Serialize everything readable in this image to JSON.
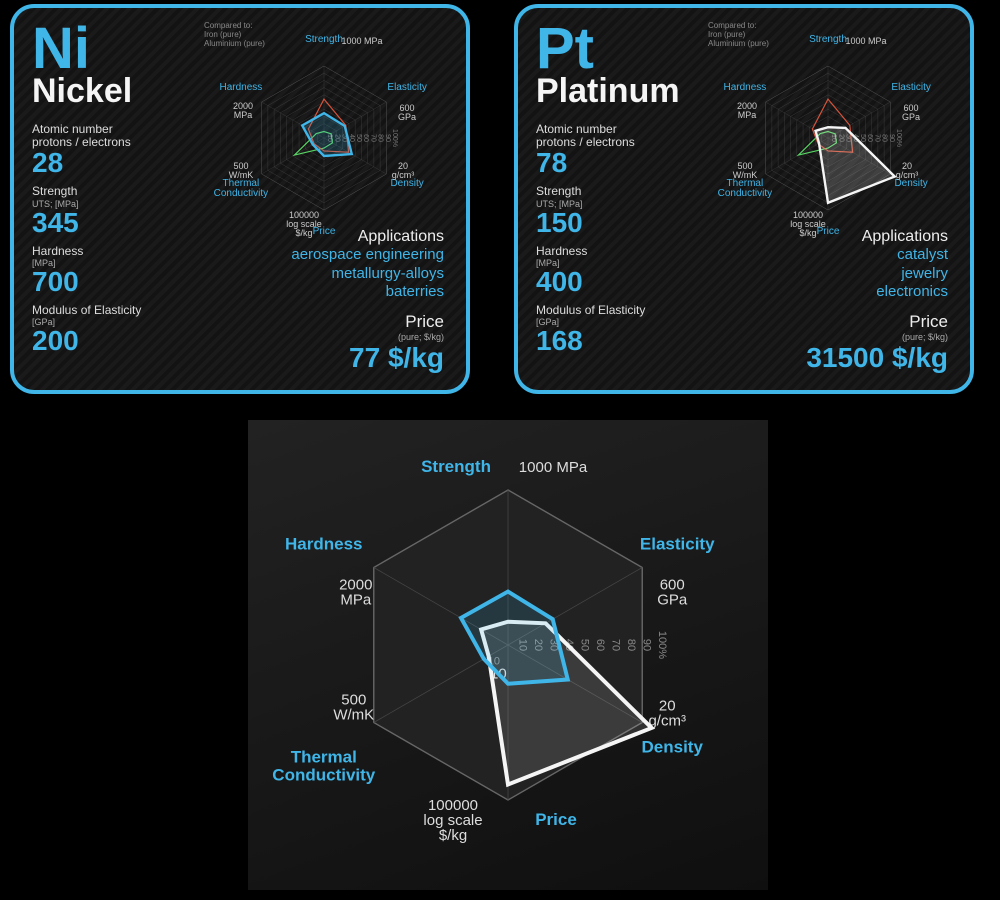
{
  "colors": {
    "accent": "#3fb5e8",
    "nickel_line": "#3fb5e8",
    "platinum_line": "#f5f5f5",
    "iron_line": "#e85a3f",
    "aluminium_line": "#5fe86b",
    "grid": "#555555",
    "text": "#dddddd"
  },
  "radar_axes": [
    {
      "label": "Strength",
      "unit": "1000 MPa",
      "angle": -90
    },
    {
      "label": "Elasticity",
      "unit": "600\nGPa",
      "angle": -30
    },
    {
      "label": "Density",
      "unit": "20\ng/cm³",
      "angle": 30
    },
    {
      "label": "Price",
      "unit": "100000\nlog scale\n$/kg",
      "angle": 90
    },
    {
      "label": "Thermal\nConductivity",
      "unit": "500\nW/mK",
      "angle": 150
    },
    {
      "label": "Hardness",
      "unit": "2000\nMPa",
      "angle": 210
    }
  ],
  "radar_rings": [
    10,
    20,
    30,
    40,
    50,
    60,
    70,
    80,
    90,
    100
  ],
  "radar_tick_suffix": "%",
  "compare_legend": {
    "title": "Compared to:",
    "a": "Iron (pure)",
    "b": "Aluminium (pure)"
  },
  "nickel": {
    "symbol": "Ni",
    "name": "Nickel",
    "atomic_label": "Atomic number\nprotons / electrons",
    "atomic": "28",
    "strength_label": "Strength",
    "strength_sub": "UTS; [MPa]",
    "strength": "345",
    "hardness_label": "Hardness",
    "hardness_sub": "[MPa]",
    "hardness": "700",
    "modulus_label": "Modulus of Elasticity",
    "modulus_sub": "[GPa]",
    "modulus": "200",
    "apps_label": "Applications",
    "apps": "aerospace engineering\nmetallurgy-alloys\nbaterries",
    "price_label": "Price",
    "price_sub": "(pure; $/kg)",
    "price": "77 $/kg",
    "radar_values": [
      34.5,
      33.3,
      44.5,
      25,
      18,
      35
    ],
    "iron_values": [
      54,
      35,
      39.4,
      18,
      16,
      25
    ],
    "alu_values": [
      9,
      11.5,
      13.5,
      14,
      47.4,
      12.3
    ]
  },
  "platinum": {
    "symbol": "Pt",
    "name": "Platinum",
    "atomic_label": "Atomic number\nprotons / electrons",
    "atomic": "78",
    "strength_label": "Strength",
    "strength_sub": "UTS; [MPa]",
    "strength": "150",
    "hardness_label": "Hardness",
    "hardness_sub": "[MPa]",
    "hardness": "400",
    "modulus_label": "Modulus of Elasticity",
    "modulus_sub": "[GPa]",
    "modulus": "168",
    "apps_label": "Applications",
    "apps": "catalyst\njewelry\nelectronics",
    "price_label": "Price",
    "price_sub": "(pure; $/kg)",
    "price": "31500 $/kg",
    "radar_values": [
      15,
      28,
      107,
      90,
      14.4,
      20
    ],
    "iron_values": [
      54,
      35,
      39.4,
      18,
      16,
      25
    ],
    "alu_values": [
      9,
      11.5,
      13.5,
      14,
      47.4,
      12.3
    ]
  },
  "big_chart": {
    "nickel_values": [
      34.5,
      33.3,
      44.5,
      25,
      18,
      35
    ],
    "platinum_values": [
      15,
      28,
      107,
      90,
      14.4,
      20
    ]
  }
}
